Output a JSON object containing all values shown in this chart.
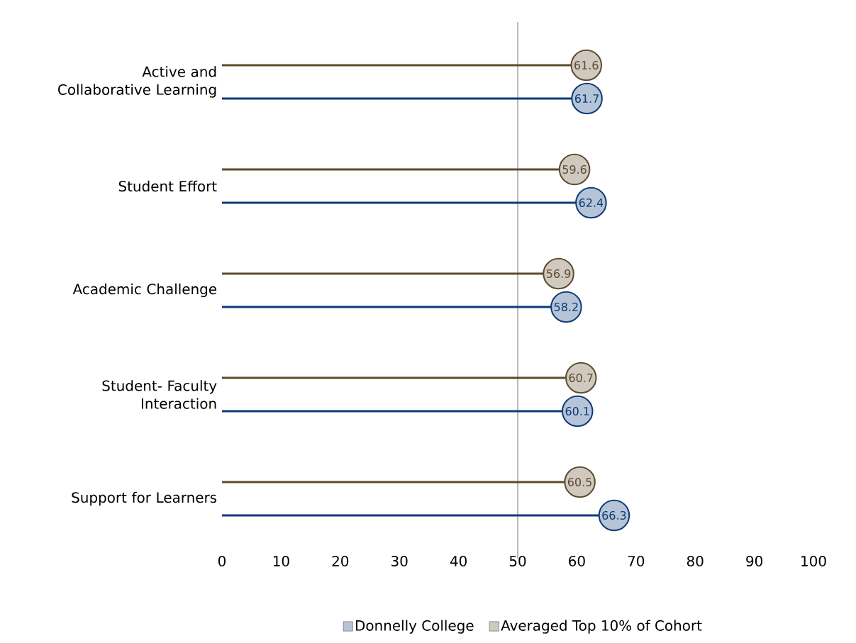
{
  "chart_data": {
    "type": "lollipop",
    "orientation": "horizontal",
    "categories": [
      "Active and Collaborative Learning",
      "Student Effort",
      "Academic Challenge",
      "Student- Faculty Interaction",
      "Support for Learners"
    ],
    "series": [
      {
        "name": "Donnelly College",
        "color": "#0c3b78",
        "values": [
          61.7,
          62.4,
          58.2,
          60.1,
          66.3
        ]
      },
      {
        "name": "Averaged Top 10% of Cohort",
        "color": "#5e4b2d",
        "values": [
          61.6,
          59.6,
          56.9,
          60.7,
          60.5
        ]
      }
    ],
    "xlim": [
      0,
      100
    ],
    "xticks": [
      0,
      10,
      20,
      30,
      40,
      50,
      60,
      70,
      80,
      90,
      100
    ],
    "ref_lines": [
      {
        "axis": "x",
        "value": 50,
        "color": "#a6a6a6"
      }
    ],
    "data_labels": true,
    "marker": "circle",
    "line_style": "solid",
    "legend": "bottom",
    "grid": false
  }
}
